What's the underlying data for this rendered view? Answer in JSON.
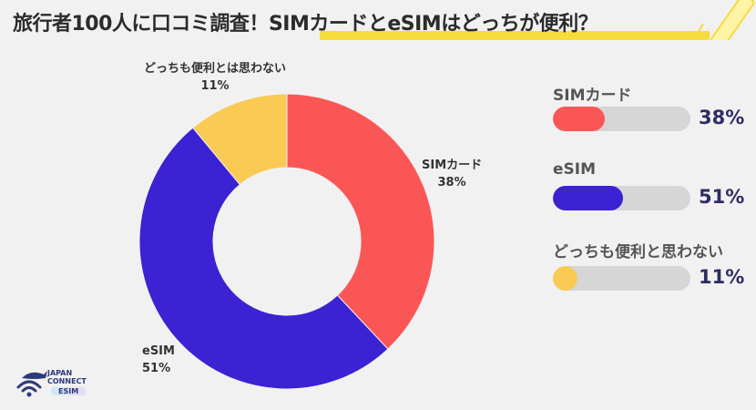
{
  "header": {
    "title_prefix": "旅行者100人に口コミ調査！",
    "title_highlight": "SIMカードとeSIMはどっちが便利？",
    "accent_color": "#f7dc3b"
  },
  "chart_data": {
    "type": "pie",
    "donut": true,
    "slices": [
      {
        "name": "SIMカード",
        "value": 38,
        "label": "38%",
        "color": "#fb5656"
      },
      {
        "name": "eSIM",
        "value": 51,
        "label": "51%",
        "color": "#3b22d2"
      },
      {
        "name": "どっちも便利とは思わない",
        "value": 11,
        "label": "11%",
        "color": "#f9cb55"
      }
    ]
  },
  "legend": [
    {
      "label": "SIMカード",
      "pct": "38%",
      "value": 38,
      "color": "#fb5656"
    },
    {
      "label": "eSIM",
      "pct": "51%",
      "value": 51,
      "color": "#3b22d2"
    },
    {
      "label": "どっちも便利と思わない",
      "pct": "11%",
      "value": 11,
      "color": "#f9cb55"
    }
  ],
  "logo": {
    "line1": "JAPAN",
    "line2": "CONNECT",
    "line3": "ESIM",
    "icon": "wifi-whale-icon"
  }
}
